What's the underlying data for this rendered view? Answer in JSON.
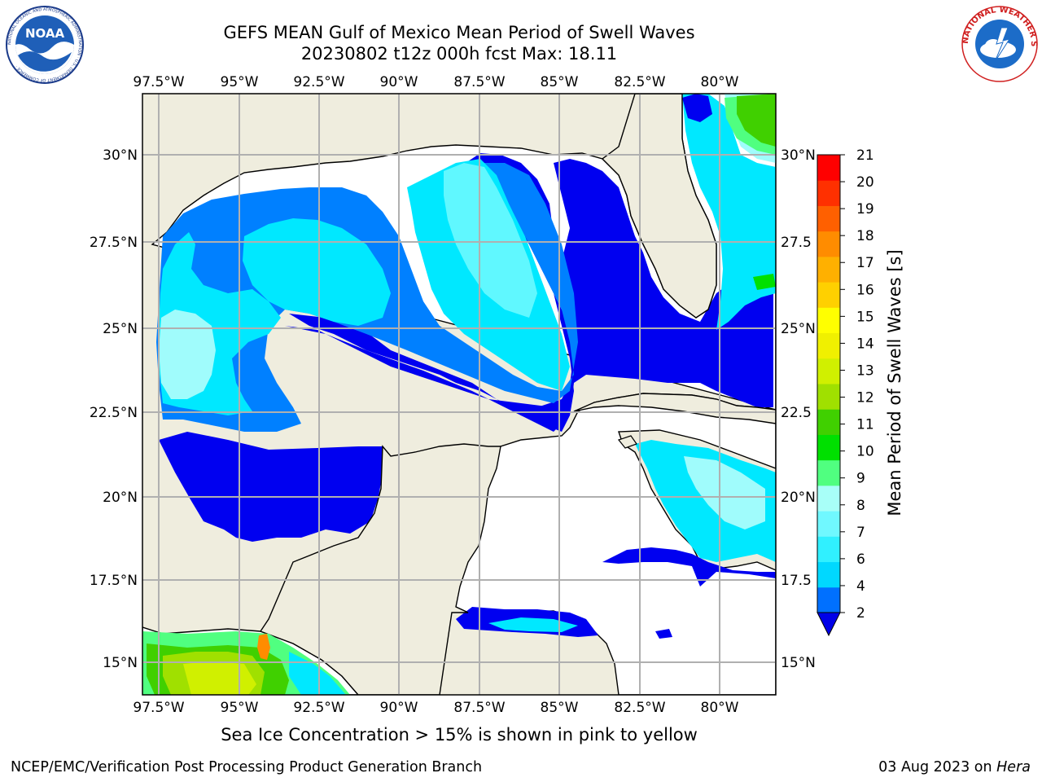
{
  "header": {
    "title_line1": "GEFS MEAN Gulf of Mexico Mean Period of Swell Waves",
    "title_line2": "20230802 t12z 000h fcst   Max: 18.11"
  },
  "logos": {
    "noaa": {
      "label": "NOAA",
      "ring_text": "NATIONAL OCEANIC AND ATMOSPHERIC ADMINISTRATION · U.S. DEPARTMENT OF COMMERCE ·"
    },
    "nws": {
      "ring_text": "NATIONAL WEATHER SERVICE"
    }
  },
  "map": {
    "lon_labels": [
      "97.5°W",
      "95°W",
      "92.5°W",
      "90°W",
      "87.5°W",
      "85°W",
      "82.5°W",
      "80°W"
    ],
    "lat_labels_left": [
      "30°N",
      "27.5°N",
      "25°N",
      "22.5°N",
      "20°N",
      "17.5°N",
      "15°N"
    ],
    "lat_labels_right": [
      "30°N",
      "27.5",
      "25°N",
      "22.5",
      "20°N",
      "17.5",
      "15°N"
    ]
  },
  "colorbar": {
    "label": "Mean Period of Swell Waves [s]",
    "ticks": [
      "2",
      "4",
      "6",
      "7",
      "8",
      "9",
      "10",
      "11",
      "12",
      "13",
      "14",
      "15",
      "16",
      "17",
      "18",
      "19",
      "20",
      "21"
    ],
    "colors": [
      "#0070ff",
      "#00d8ff",
      "#30f0ff",
      "#70f8ff",
      "#a8fff8",
      "#50ff80",
      "#00e000",
      "#40d000",
      "#a0e000",
      "#d0f000",
      "#f0f000",
      "#ffff00",
      "#ffd000",
      "#ffb000",
      "#ff8c00",
      "#ff6000",
      "#ff3000",
      "#ff0000"
    ],
    "under_color": "#0000e8"
  },
  "colors": {
    "land": "#efedde",
    "ocean_none": "#ffffff",
    "grid": "#b0b0b0",
    "period_2_4": "#0000f0",
    "period_4_6": "#0080ff",
    "period_6_7": "#00e8ff",
    "period_7_8": "#60f8ff",
    "period_8_9": "#a0fcfc"
  },
  "caption": "Sea Ice Concentration > 15% is shown in pink to yellow",
  "footer": {
    "left": "NCEP/EMC/Verification Post Processing Product Generation Branch",
    "date": "03 Aug 2023 on ",
    "host": "Hera"
  }
}
